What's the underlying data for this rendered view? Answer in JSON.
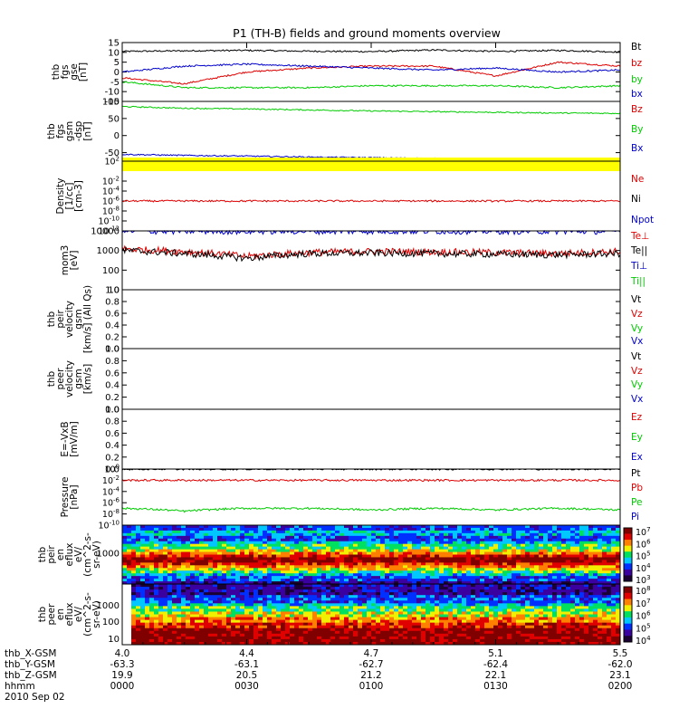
{
  "title": "P1 (TH-B) fields and ground moments overview",
  "colors": {
    "black": "#000000",
    "red": "#e00000",
    "green": "#00cc00",
    "blue": "#0000cc",
    "yellow": "#ffff00"
  },
  "chart_data": [
    {
      "type": "line",
      "panel": "fgs-gse",
      "ylabel_lines": [
        "thb",
        "fgs",
        "gse",
        "[nT]"
      ],
      "ylim": [
        -15,
        15
      ],
      "yticks": [
        "15",
        "10",
        "5",
        "0",
        "-5",
        "-10",
        "-15"
      ],
      "series": [
        {
          "name": "Bt",
          "color": "black",
          "trend": [
            10.5,
            10.8,
            11.0,
            10.6,
            10.4,
            11.2,
            10.5,
            11.0,
            10.2
          ]
        },
        {
          "name": "bz",
          "color": "red",
          "trend": [
            -3,
            -6,
            0,
            2,
            3,
            3,
            -2,
            5,
            3
          ]
        },
        {
          "name": "by",
          "color": "green",
          "trend": [
            -5,
            -8,
            -8,
            -8,
            -7,
            -7,
            -7,
            -8,
            -7
          ]
        },
        {
          "name": "bx",
          "color": "blue",
          "trend": [
            0,
            3,
            4,
            3,
            2,
            1,
            2,
            0,
            1
          ]
        }
      ]
    },
    {
      "type": "line",
      "panel": "fgs-gsm-dsp",
      "ylabel_lines": [
        "thb",
        "fgs",
        "gsm",
        "-dsp",
        "[nT]"
      ],
      "ylim": [
        -75,
        100
      ],
      "yticks": [
        "100",
        "50",
        "0",
        "-50"
      ],
      "series": [
        {
          "name": "Bz",
          "color": "red",
          "trend": []
        },
        {
          "name": "By",
          "color": "green",
          "trend": [
            85,
            80,
            78,
            75,
            72,
            70,
            68,
            66,
            65
          ]
        },
        {
          "name": "Bx",
          "color": "blue",
          "trend": [
            -55,
            -58,
            -60,
            -63,
            -65,
            -67,
            -70,
            -72,
            -73
          ]
        }
      ]
    },
    {
      "type": "line",
      "panel": "density",
      "yscale": "log",
      "ylabel_lines": [
        "Density",
        "[1/cc]",
        "[cm-3]"
      ],
      "ylim": [
        1e-12,
        100
      ],
      "yticks_exp": [
        2,
        -2,
        -4,
        -6,
        -8,
        -10,
        -12
      ],
      "series": [
        {
          "name": "Ne",
          "color": "red",
          "trend": [
            1e-06,
            1e-06,
            1e-06,
            1e-06,
            1e-06,
            1e-06,
            1e-06,
            1e-06,
            1e-06
          ]
        },
        {
          "name": "Ni",
          "color": "black",
          "trend": []
        },
        {
          "name": "Npot",
          "color": "blue",
          "trend": []
        }
      ]
    },
    {
      "type": "line",
      "panel": "temperature",
      "yscale": "log",
      "ylabel_lines": [
        "mom3",
        "[eV]"
      ],
      "ylim": [
        10,
        10000
      ],
      "yticks": [
        "10000",
        "1000",
        "100",
        "10"
      ],
      "series": [
        {
          "name": "Te⊥",
          "color": "red",
          "trend": [
            1200,
            900,
            500,
            800,
            900,
            850,
            800,
            700,
            900
          ]
        },
        {
          "name": "Te||",
          "color": "black",
          "trend": [
            1000,
            700,
            400,
            700,
            750,
            700,
            650,
            600,
            700
          ]
        },
        {
          "name": "Ti⊥",
          "color": "blue",
          "trend": [
            10000,
            10000,
            10000,
            10000,
            10000,
            10000,
            10000,
            10000,
            10000
          ]
        },
        {
          "name": "Ti||",
          "color": "green",
          "trend": []
        }
      ]
    },
    {
      "type": "line",
      "panel": "peir-velocity",
      "ylabel_lines": [
        "thb",
        "peir",
        "velocity",
        "gsm",
        "[km/s] (All Qs)"
      ],
      "ylim": [
        0,
        1
      ],
      "yticks": [
        "1.0",
        "0.8",
        "0.6",
        "0.4",
        "0.2",
        "0.0"
      ],
      "series": [
        {
          "name": "Vt",
          "color": "black"
        },
        {
          "name": "Vz",
          "color": "red"
        },
        {
          "name": "Vy",
          "color": "green"
        },
        {
          "name": "Vx",
          "color": "blue"
        }
      ]
    },
    {
      "type": "line",
      "panel": "peer-velocity",
      "ylabel_lines": [
        "thb",
        "peer",
        "velocity",
        "gsm",
        "[km/s]"
      ],
      "ylim": [
        0,
        1
      ],
      "yticks": [
        "1.0",
        "0.8",
        "0.6",
        "0.4",
        "0.2",
        "0.0"
      ],
      "series": [
        {
          "name": "Vt",
          "color": "black"
        },
        {
          "name": "Vz",
          "color": "red"
        },
        {
          "name": "Vy",
          "color": "green"
        },
        {
          "name": "Vx",
          "color": "blue"
        }
      ]
    },
    {
      "type": "line",
      "panel": "efield",
      "ylabel_lines": [
        "E=-VxB",
        "[mV/m]"
      ],
      "ylim": [
        0,
        1
      ],
      "yticks": [
        "1.0",
        "0.8",
        "0.6",
        "0.4",
        "0.2",
        "0.0"
      ],
      "series": [
        {
          "name": "Ez",
          "color": "red"
        },
        {
          "name": "Ey",
          "color": "green"
        },
        {
          "name": "Ex",
          "color": "blue"
        }
      ]
    },
    {
      "type": "line",
      "panel": "pressure",
      "yscale": "log",
      "ylabel_lines": [
        "Pressure",
        "[nPa]"
      ],
      "ylim": [
        1e-10,
        1
      ],
      "yticks_exp": [
        0,
        -2,
        -4,
        -6,
        -8,
        -10
      ],
      "series": [
        {
          "name": "Pt",
          "color": "black",
          "trend": [
            1,
            1,
            1,
            1,
            1,
            1,
            1,
            1,
            1
          ]
        },
        {
          "name": "Pb",
          "color": "red",
          "trend": [
            0.01,
            0.01,
            0.01,
            0.01,
            0.01,
            0.01,
            0.01,
            0.01,
            0.01
          ]
        },
        {
          "name": "Pe",
          "color": "green",
          "trend": [
            1e-07,
            3e-08,
            1e-07,
            1e-07,
            5e-08,
            1e-07,
            5e-08,
            1e-07,
            5e-08
          ]
        },
        {
          "name": "Pi",
          "color": "blue",
          "trend": []
        }
      ]
    },
    {
      "type": "heatmap",
      "panel": "peir-eflux",
      "yscale": "log",
      "ylabel_lines": [
        "thb",
        "peir",
        "en",
        "eflux",
        "eV/",
        "(cm^2-s-",
        "sr-eV)"
      ],
      "yticks": [
        "1000"
      ],
      "colorbar_exp": [
        7,
        6,
        5,
        4,
        3
      ]
    },
    {
      "type": "heatmap",
      "panel": "peer-eflux",
      "yscale": "log",
      "ylabel_lines": [
        "thb",
        "peer",
        "en",
        "eflux",
        "eV/",
        "(cm^2-s-",
        "sr-eV)"
      ],
      "yticks": [
        "1000",
        "100",
        "10"
      ],
      "colorbar_exp": [
        8,
        7,
        6,
        5,
        4
      ]
    }
  ],
  "x_axis": {
    "row_labels": [
      "thb_X-GSM",
      "thb_Y-GSM",
      "thb_Z-GSM",
      "hhmm",
      "2010 Sep 02"
    ],
    "ticks": [
      {
        "x": "4.0",
        "y": "-63.3",
        "z": "19.9",
        "time": "0000"
      },
      {
        "x": "4.4",
        "y": "-63.1",
        "z": "20.5",
        "time": "0030"
      },
      {
        "x": "4.7",
        "y": "-62.7",
        "z": "21.2",
        "time": "0100"
      },
      {
        "x": "5.1",
        "y": "-62.4",
        "z": "22.1",
        "time": "0130"
      },
      {
        "x": "5.5",
        "y": "-62.0",
        "z": "23.1",
        "time": "0200"
      }
    ]
  }
}
